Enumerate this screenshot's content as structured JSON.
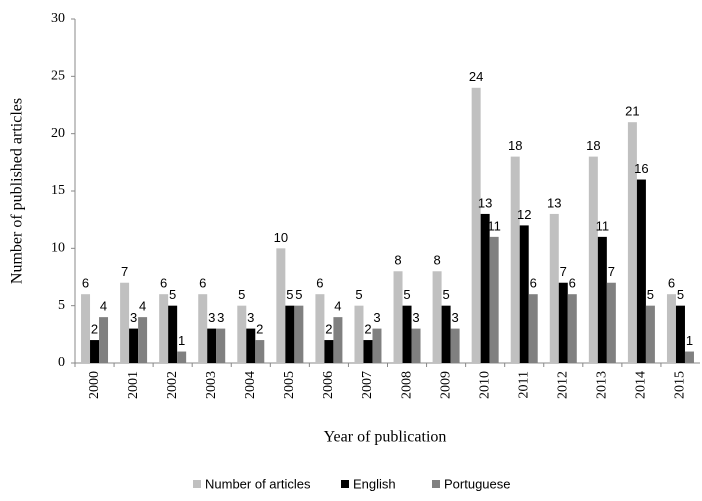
{
  "chart_data": {
    "type": "bar",
    "x_label": "Year of publication",
    "y_label": "Number of published articles",
    "categories": [
      "2000",
      "2001",
      "2002",
      "2003",
      "2004",
      "2005",
      "2006",
      "2007",
      "2008",
      "2009",
      "2010",
      "2011",
      "2012",
      "2013",
      "2014",
      "2015"
    ],
    "series": [
      {
        "name": "Number of articles",
        "color": "#c0c0c0",
        "values": [
          6,
          7,
          6,
          6,
          5,
          10,
          6,
          5,
          8,
          8,
          24,
          18,
          13,
          18,
          21,
          6
        ]
      },
      {
        "name": "English",
        "color": "#000000",
        "values": [
          2,
          3,
          5,
          3,
          3,
          5,
          2,
          2,
          5,
          5,
          13,
          12,
          7,
          11,
          16,
          5
        ]
      },
      {
        "name": "Portuguese",
        "color": "#808080",
        "values": [
          4,
          4,
          1,
          3,
          2,
          5,
          4,
          3,
          3,
          3,
          11,
          6,
          6,
          7,
          5,
          1
        ]
      }
    ],
    "ylim": [
      0,
      30
    ],
    "yticks": [
      0,
      5,
      10,
      15,
      20,
      25,
      30
    ],
    "grid": false,
    "legend": "bottom"
  }
}
